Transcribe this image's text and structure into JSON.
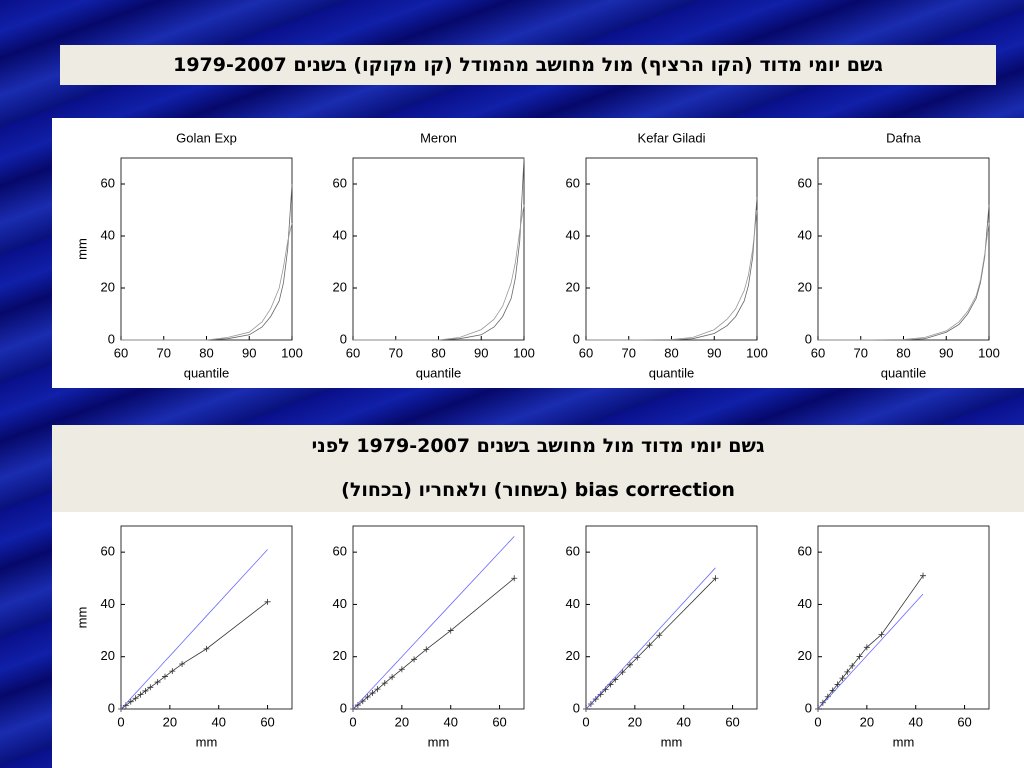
{
  "header": {
    "title_top": "גשם יומי  מדוד (הקו הרציף) מול מחושב מהמודל (קו מקוקו) בשנים 1979-2007",
    "title_bottom_1": "גשם יומי מדוד מול מחושב בשנים 1979-2007 לפני",
    "title_bottom_2": "bias correction (בשחור) ולאחריו (בכחול)"
  },
  "chart_data": [
    {
      "type": "line",
      "title": "Golan Exp",
      "xlabel": "quantile",
      "ylabel": "mm",
      "xlim": [
        60,
        100
      ],
      "ylim": [
        0,
        70
      ],
      "xticks": [
        60,
        70,
        80,
        90,
        100
      ],
      "yticks": [
        0,
        20,
        40,
        60
      ],
      "x": [
        60,
        70,
        80,
        85,
        90,
        93,
        95,
        97,
        98,
        99,
        100
      ],
      "series": [
        {
          "color": "#666666",
          "values": [
            0,
            0,
            0,
            0.5,
            2,
            5,
            9,
            15,
            22,
            35,
            60
          ]
        },
        {
          "color": "#999999",
          "values": [
            0,
            0,
            0,
            1,
            3,
            7,
            12,
            20,
            28,
            38,
            45
          ]
        }
      ]
    },
    {
      "type": "line",
      "title": "Meron",
      "xlabel": "quantile",
      "xlim": [
        60,
        100
      ],
      "ylim": [
        0,
        70
      ],
      "xticks": [
        60,
        70,
        80,
        90,
        100
      ],
      "yticks": [
        0,
        20,
        40,
        60
      ],
      "x": [
        60,
        70,
        80,
        85,
        90,
        93,
        95,
        97,
        98,
        99,
        100
      ],
      "series": [
        {
          "color": "#666666",
          "values": [
            0,
            0,
            0,
            0.5,
            2,
            5,
            9,
            16,
            24,
            38,
            70
          ]
        },
        {
          "color": "#999999",
          "values": [
            0,
            0,
            0,
            1,
            4,
            8,
            13,
            22,
            30,
            42,
            52
          ]
        }
      ]
    },
    {
      "type": "line",
      "title": "Kefar Giladi",
      "xlabel": "quantile",
      "xlim": [
        60,
        100
      ],
      "ylim": [
        0,
        70
      ],
      "xticks": [
        60,
        70,
        80,
        90,
        100
      ],
      "yticks": [
        0,
        20,
        40,
        60
      ],
      "x": [
        60,
        70,
        80,
        85,
        90,
        93,
        95,
        97,
        98,
        99,
        100
      ],
      "series": [
        {
          "color": "#666666",
          "values": [
            0,
            0,
            0,
            0.5,
            2.5,
            5.5,
            9,
            15,
            21,
            32,
            55
          ]
        },
        {
          "color": "#999999",
          "values": [
            0,
            0,
            0.2,
            1,
            4,
            8,
            12,
            19,
            25,
            35,
            50
          ]
        }
      ]
    },
    {
      "type": "line",
      "title": "Dafna",
      "xlabel": "quantile",
      "xlim": [
        60,
        100
      ],
      "ylim": [
        0,
        70
      ],
      "xticks": [
        60,
        70,
        80,
        90,
        100
      ],
      "yticks": [
        0,
        20,
        40,
        60
      ],
      "x": [
        60,
        70,
        80,
        85,
        90,
        93,
        95,
        97,
        98,
        99,
        100
      ],
      "series": [
        {
          "color": "#666666",
          "values": [
            0,
            0,
            0,
            0.5,
            3,
            6,
            10,
            16,
            22,
            32,
            52
          ]
        },
        {
          "color": "#999999",
          "values": [
            0,
            0,
            0.2,
            1,
            3.5,
            7,
            11,
            17,
            23,
            33,
            45
          ]
        }
      ]
    },
    {
      "type": "line",
      "xlabel": "mm",
      "ylabel": "mm",
      "xlim": [
        0,
        70
      ],
      "ylim": [
        0,
        70
      ],
      "xticks": [
        0,
        20,
        40,
        60
      ],
      "yticks": [
        0,
        20,
        40,
        60
      ],
      "x": [
        0,
        2,
        4,
        6,
        8,
        10,
        12,
        15,
        18,
        21,
        25,
        35,
        60
      ],
      "series": [
        {
          "color": "#333333",
          "markers": true,
          "values": [
            0,
            1.4,
            2.8,
            4.1,
            5.5,
            6.9,
            8.3,
            10.3,
            12.4,
            14.5,
            17.2,
            23,
            41
          ]
        },
        {
          "color": "#6a6aff",
          "values": [
            0,
            2,
            4.1,
            6.1,
            8.1,
            10.2,
            12.2,
            15.2,
            18.3,
            21.3,
            25.4,
            35.6,
            61
          ]
        }
      ]
    },
    {
      "type": "line",
      "xlabel": "mm",
      "xlim": [
        0,
        70
      ],
      "ylim": [
        0,
        70
      ],
      "xticks": [
        0,
        20,
        40,
        60
      ],
      "yticks": [
        0,
        20,
        40,
        60
      ],
      "x": [
        0,
        2,
        4,
        6,
        8,
        10,
        13,
        16,
        20,
        25,
        30,
        40,
        66
      ],
      "series": [
        {
          "color": "#333333",
          "markers": true,
          "values": [
            0,
            1.5,
            3,
            4.6,
            6.1,
            7.6,
            9.9,
            12.2,
            15.2,
            19,
            22.8,
            30,
            50
          ]
        },
        {
          "color": "#6a6aff",
          "values": [
            0,
            2,
            4,
            6,
            8,
            10,
            13,
            16,
            20,
            25,
            30,
            40,
            66
          ]
        }
      ]
    },
    {
      "type": "line",
      "xlabel": "mm",
      "xlim": [
        0,
        70
      ],
      "ylim": [
        0,
        70
      ],
      "xticks": [
        0,
        20,
        40,
        60
      ],
      "yticks": [
        0,
        20,
        40,
        60
      ],
      "x": [
        0,
        2,
        4,
        6,
        8,
        10,
        12,
        15,
        18,
        21,
        26,
        30,
        53
      ],
      "series": [
        {
          "color": "#333333",
          "markers": true,
          "values": [
            0,
            1.9,
            3.8,
            5.6,
            7.5,
            9.4,
            11.3,
            14.1,
            16.9,
            19.7,
            24.4,
            28.2,
            50
          ]
        },
        {
          "color": "#6a6aff",
          "values": [
            0,
            2,
            4.1,
            6.1,
            8.2,
            10.2,
            12.2,
            15.3,
            18.4,
            21.4,
            26.5,
            30.6,
            54
          ]
        }
      ]
    },
    {
      "type": "line",
      "xlabel": "mm",
      "xlim": [
        0,
        70
      ],
      "ylim": [
        0,
        70
      ],
      "xticks": [
        0,
        20,
        40,
        60
      ],
      "yticks": [
        0,
        20,
        40,
        60
      ],
      "x": [
        0,
        2,
        4,
        6,
        8,
        10,
        12,
        14,
        17,
        20,
        26,
        43
      ],
      "series": [
        {
          "color": "#333333",
          "markers": true,
          "values": [
            0,
            2.4,
            4.7,
            7.1,
            9.4,
            11.8,
            14.2,
            16.5,
            20.1,
            23.6,
            28.5,
            51
          ]
        },
        {
          "color": "#6a6aff",
          "values": [
            0,
            2,
            4.1,
            6.1,
            8.2,
            10.2,
            12.2,
            14.3,
            17.3,
            20.4,
            26.5,
            44
          ]
        }
      ]
    }
  ]
}
